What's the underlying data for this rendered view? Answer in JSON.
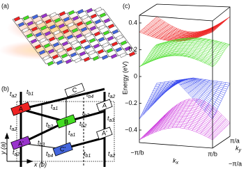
{
  "panel_a": {
    "label": "(a)"
  },
  "panel_b": {
    "label": "(b)",
    "sites": [
      "C",
      "B",
      "A",
      "A'",
      "C'",
      "A",
      "A'"
    ],
    "hoppings": [
      {
        "symbol": "t",
        "sub": "a2"
      },
      {
        "symbol": "t",
        "sub": "b1"
      },
      {
        "symbol": "t",
        "sub": "b4"
      },
      {
        "symbol": "t",
        "sub": "a2"
      },
      {
        "symbol": "t",
        "sub": "a1"
      },
      {
        "symbol": "t",
        "sub": "b3"
      },
      {
        "symbol": "t",
        "sub": "b2"
      },
      {
        "symbol": "t",
        "sub": "b2"
      },
      {
        "symbol": "t",
        "sub": "a2"
      },
      {
        "symbol": "t",
        "sub": "a3"
      },
      {
        "symbol": "t",
        "sub": "a1"
      },
      {
        "symbol": "t",
        "sub": "b3"
      },
      {
        "symbol": "t",
        "sub": "a2"
      },
      {
        "symbol": "t",
        "sub": "b4"
      },
      {
        "symbol": "t",
        "sub": "b1"
      },
      {
        "symbol": "t",
        "sub": "a2"
      }
    ],
    "y_axis": "y (a)",
    "x_axis": "x (b)"
  },
  "panel_c": {
    "label": "(c)",
    "y_axis_title": "Energy (eV)",
    "y_tick_labels": [
      "0.4",
      "0.2",
      "0",
      "−0.2",
      "−0.4"
    ],
    "kx_label": {
      "symbol": "k",
      "sub": "x"
    },
    "ky_label": {
      "symbol": "k",
      "sub": "y"
    },
    "kx_ticks": [
      "−π/b",
      "π/b"
    ],
    "ky_ticks": [
      "π/a",
      "−π/a"
    ]
  }
}
